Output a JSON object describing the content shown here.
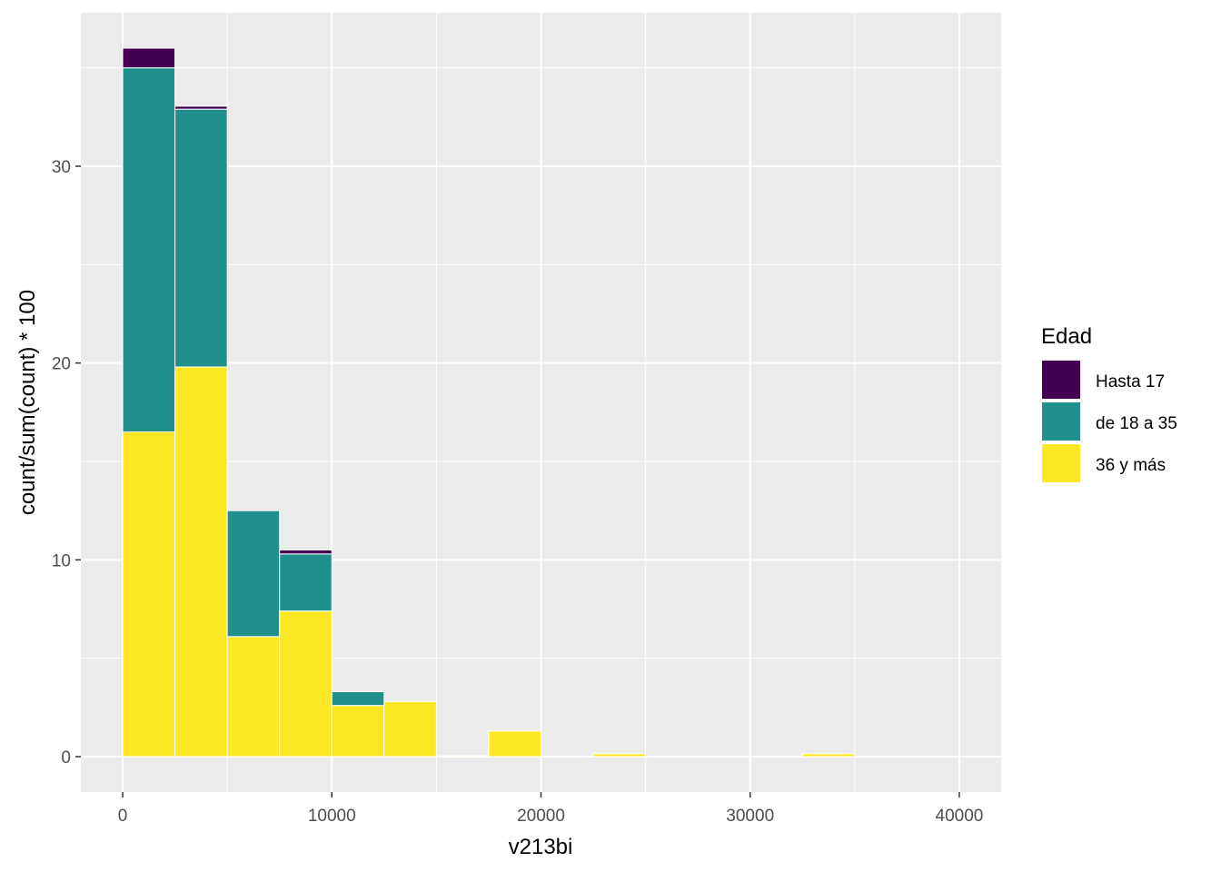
{
  "chart_data": {
    "type": "bar",
    "subtype": "stacked-histogram",
    "xlabel": "v213bi",
    "ylabel": "count/sum(count) * 100",
    "xlim": [
      -2000,
      42000
    ],
    "ylim": [
      -1.8,
      37.8
    ],
    "x_ticks": [
      0,
      10000,
      20000,
      30000,
      40000
    ],
    "x_tick_labels": [
      "0",
      "10000",
      "20000",
      "30000",
      "40000"
    ],
    "y_ticks": [
      0,
      10,
      20,
      30
    ],
    "y_tick_labels": [
      "0",
      "10",
      "20",
      "30"
    ],
    "grid": true,
    "bin_width": 2500,
    "bins": [
      [
        0,
        2500
      ],
      [
        2500,
        5000
      ],
      [
        5000,
        7500
      ],
      [
        7500,
        10000
      ],
      [
        10000,
        12500
      ],
      [
        12500,
        15000
      ],
      [
        15000,
        17500
      ],
      [
        17500,
        20000
      ],
      [
        20000,
        22500
      ],
      [
        22500,
        25000
      ],
      [
        25000,
        27500
      ],
      [
        27500,
        30000
      ],
      [
        30000,
        32500
      ],
      [
        32500,
        35000
      ],
      [
        35000,
        37500
      ],
      [
        37500,
        40000
      ]
    ],
    "series": [
      {
        "name": "Hasta 17",
        "color": "#440154",
        "values": [
          1.0,
          0.15,
          0,
          0.2,
          0,
          0,
          0,
          0,
          0,
          0,
          0,
          0,
          0,
          0,
          0,
          0
        ]
      },
      {
        "name": "de 18 a 35",
        "color": "#21908C",
        "values": [
          18.5,
          13.1,
          6.4,
          2.9,
          0.7,
          0,
          0,
          0,
          0,
          0,
          0,
          0,
          0,
          0,
          0,
          0
        ]
      },
      {
        "name": "36 y más",
        "color": "#FDE725",
        "values": [
          16.5,
          19.8,
          6.1,
          7.4,
          2.6,
          2.8,
          0.05,
          1.3,
          0,
          0.15,
          0,
          0,
          0,
          0.15,
          0,
          0
        ]
      }
    ],
    "legend": {
      "title": "Edad",
      "position": "right"
    },
    "colors": {
      "panel": "#EBEBEB",
      "grid": "#FFFFFF",
      "bar_outline": "#FFFFFF"
    }
  }
}
